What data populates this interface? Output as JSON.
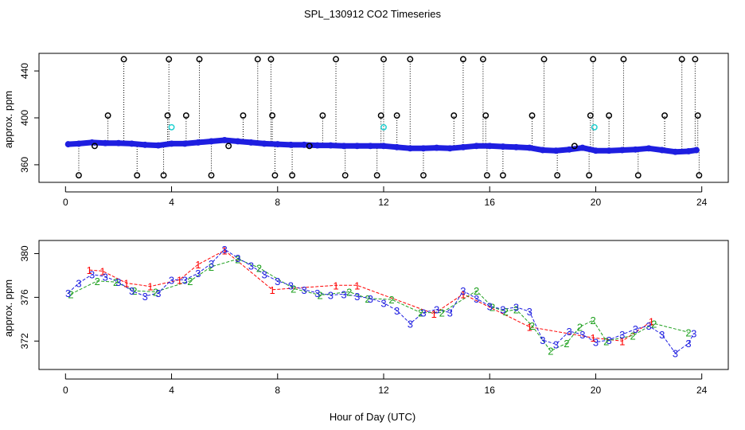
{
  "figure": {
    "title": "SPL_130912  CO2 Timeseries",
    "xlabel": "Hour of Day (UTC)"
  },
  "chart_data": [
    {
      "type": "scatter",
      "ylabel": "approx. ppm",
      "xlim": [
        -1.0,
        25.0
      ],
      "ylim": [
        345.0,
        455.0
      ],
      "xticks": [
        0,
        4,
        8,
        12,
        16,
        20,
        24
      ],
      "yticks": [
        360,
        400,
        440
      ],
      "grid": false,
      "series": [
        {
          "color": "#1e1ee0",
          "marker": "o",
          "x": [
            0.1,
            0.5,
            1.0,
            1.5,
            2.0,
            2.5,
            3.0,
            3.5,
            4.0,
            4.5,
            5.0,
            5.5,
            6.0,
            6.5,
            7.0,
            7.5,
            8.0,
            8.5,
            9.0,
            9.5,
            10.0,
            10.5,
            11.0,
            11.5,
            12.0,
            12.5,
            13.0,
            13.5,
            14.0,
            14.5,
            15.0,
            15.5,
            16.0,
            16.5,
            17.0,
            17.5,
            18.0,
            18.5,
            19.0,
            19.5,
            20.0,
            20.5,
            21.0,
            21.5,
            22.0,
            22.5,
            23.0,
            23.5,
            23.8
          ],
          "y": [
            377.5,
            378,
            379,
            378.5,
            378.5,
            378,
            377,
            376.5,
            378,
            378,
            379,
            380,
            381,
            380,
            379,
            378,
            377.5,
            377,
            377,
            376.5,
            376.5,
            376,
            376,
            376,
            376,
            375,
            374,
            374,
            374.5,
            374,
            375,
            376,
            376,
            375.5,
            375,
            374.5,
            372.5,
            372,
            373,
            374.5,
            372,
            372,
            372.5,
            373,
            374,
            372.5,
            371,
            371.5,
            372.5
          ]
        },
        {
          "color": "#000000",
          "marker": "o",
          "note": "outliers",
          "x": [
            0.5,
            1.1,
            1.6,
            2.2,
            2.7,
            3.7,
            3.85,
            3.9,
            4.55,
            5.05,
            5.5,
            6.15,
            6.7,
            7.25,
            7.75,
            7.8,
            7.9,
            8.55,
            9.2,
            9.7,
            10.2,
            10.55,
            11.75,
            11.9,
            12.0,
            12.5,
            13.0,
            13.5,
            14.65,
            15.0,
            15.75,
            15.85,
            15.9,
            16.5,
            17.6,
            18.05,
            18.55,
            19.2,
            19.75,
            19.8,
            19.9,
            20.5,
            21.05,
            21.6,
            22.6,
            23.25,
            23.75,
            23.85,
            23.9
          ],
          "y": [
            351,
            376,
            402,
            450,
            351,
            351,
            402,
            450,
            402,
            450,
            351,
            376,
            402,
            450,
            450,
            402,
            351,
            351,
            376,
            402,
            450,
            351,
            351,
            402,
            450,
            402,
            450,
            351,
            402,
            450,
            450,
            402,
            351,
            351,
            402,
            450,
            351,
            376,
            351,
            402,
            450,
            402,
            450,
            351,
            402,
            450,
            450,
            402,
            351
          ]
        },
        {
          "color": "#20d0d0",
          "marker": "o",
          "x": [
            4.0,
            12.0,
            19.95
          ],
          "y": [
            392,
            392,
            392
          ]
        }
      ]
    },
    {
      "type": "scatter",
      "ylabel": "approx. ppm",
      "xlim": [
        -1.0,
        25.0
      ],
      "ylim": [
        369.4,
        381.2
      ],
      "xticks": [
        0,
        4,
        8,
        12,
        16,
        20,
        24
      ],
      "yticks": [
        372,
        376,
        380
      ],
      "grid": false,
      "series": [
        {
          "color": "#ff0000",
          "marker": "1",
          "x": [
            0.9,
            1.4,
            2.3,
            3.2,
            4.3,
            5.0,
            6.0,
            7.8,
            10.2,
            11.0,
            13.9,
            15.0,
            17.5,
            19.9,
            21.0,
            22.1
          ],
          "y": [
            378.5,
            378.4,
            377.3,
            377.0,
            377.6,
            379.0,
            380.3,
            376.7,
            377.1,
            377.1,
            374.5,
            376.3,
            373.3,
            372.3,
            372.0,
            373.8
          ]
        },
        {
          "color": "#1ea01e",
          "marker": "2",
          "x": [
            0.2,
            1.2,
            1.9,
            2.6,
            3.4,
            4.7,
            5.5,
            6.5,
            7.3,
            8.6,
            9.6,
            10.7,
            11.4,
            12.3,
            13.4,
            14.2,
            15.5,
            16.1,
            16.6,
            17.0,
            17.6,
            18.3,
            18.9,
            19.4,
            19.9,
            20.4,
            21.4,
            22.2,
            23.5
          ],
          "y": [
            376.3,
            377.5,
            377.4,
            376.6,
            376.5,
            377.5,
            378.8,
            379.5,
            378.7,
            376.8,
            376.2,
            376.5,
            375.9,
            375.8,
            374.6,
            374.6,
            376.6,
            375.1,
            374.7,
            374.9,
            373.4,
            371.1,
            371.8,
            373.3,
            373.9,
            372.0,
            372.5,
            373.6,
            372.8
          ]
        },
        {
          "color": "#1e1ee0",
          "marker": "3",
          "x": [
            0.1,
            0.5,
            1.0,
            1.5,
            2.0,
            2.5,
            3.0,
            3.5,
            4.0,
            4.5,
            5.0,
            5.5,
            6.0,
            6.5,
            7.0,
            7.5,
            8.0,
            8.5,
            9.0,
            9.5,
            10.0,
            10.5,
            11.0,
            11.5,
            12.0,
            12.5,
            13.0,
            13.5,
            14.0,
            14.5,
            15.0,
            15.5,
            16.0,
            16.5,
            17.0,
            17.5,
            18.0,
            18.5,
            19.0,
            19.5,
            20.0,
            20.5,
            21.0,
            21.5,
            22.0,
            22.5,
            23.0,
            23.5,
            23.7
          ],
          "y": [
            376.4,
            377.3,
            378.1,
            377.9,
            377.4,
            376.6,
            376.1,
            376.4,
            377.6,
            377.6,
            378.2,
            379.1,
            380.4,
            379.6,
            378.9,
            378.1,
            377.5,
            377.1,
            376.7,
            376.4,
            376.2,
            376.3,
            376.1,
            375.9,
            375.5,
            374.8,
            373.6,
            374.6,
            374.9,
            374.6,
            376.6,
            375.9,
            375.2,
            374.9,
            375.1,
            374.7,
            372.1,
            371.7,
            372.9,
            372.6,
            371.9,
            372.1,
            372.6,
            373.1,
            373.4,
            372.6,
            370.9,
            371.8,
            372.7
          ]
        }
      ]
    }
  ]
}
